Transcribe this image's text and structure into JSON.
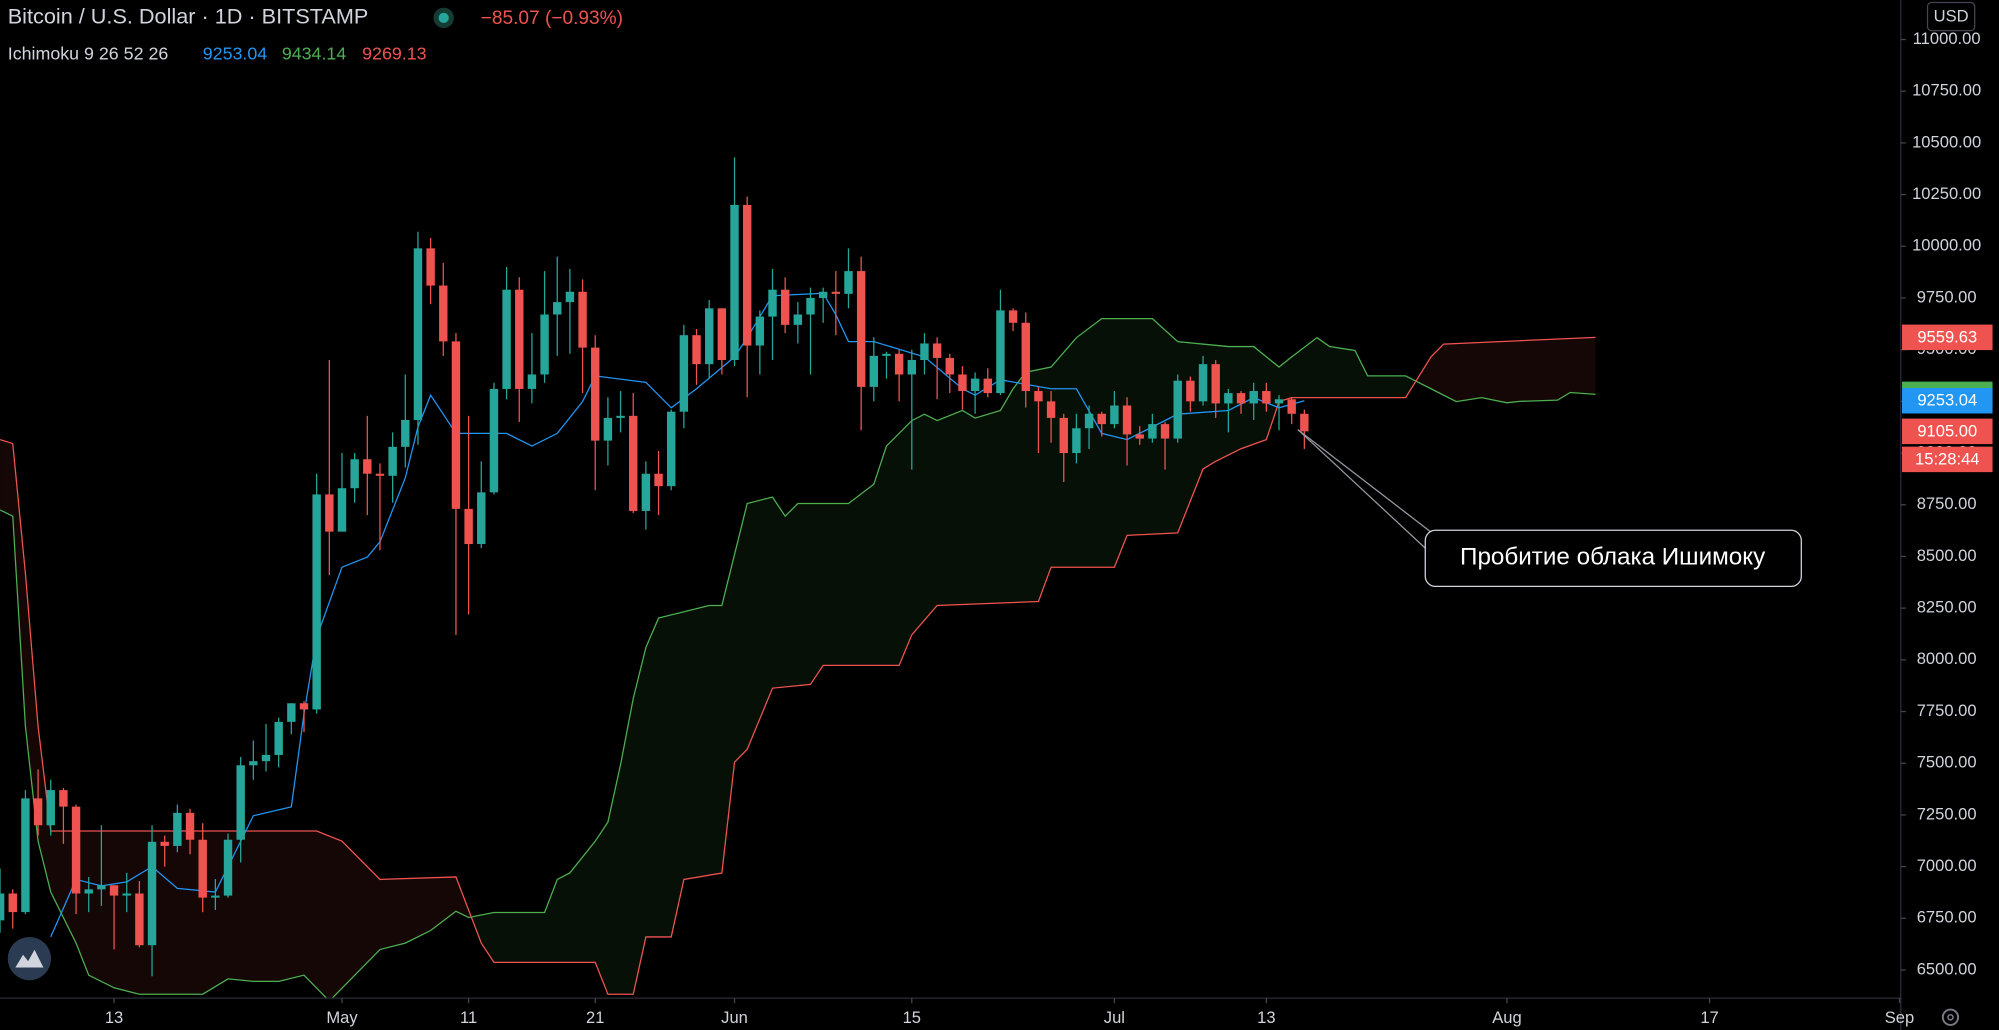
{
  "chart_data": {
    "type": "candlestick",
    "title": "Bitcoin / U.S. Dollar · 1D · BITSTAMP",
    "change": "−85.07 (−0.93%)",
    "indicator": "Ichimoku 9 26 52 26",
    "indicator_values": [
      9253.04,
      9434.14,
      9269.13
    ],
    "indicator_colors": [
      "#2196f3",
      "#4caf50",
      "#ef5350"
    ],
    "currency": "USD",
    "annotation": "Пробитие облака Ишимоку",
    "up_color": "#26a69a",
    "down_color": "#ef5350",
    "x": [
      "04-04",
      "04-05",
      "04-06",
      "04-07",
      "04-08",
      "04-09",
      "04-10",
      "04-11",
      "04-12",
      "04-13",
      "04-14",
      "04-15",
      "04-16",
      "04-17",
      "04-18",
      "04-19",
      "04-20",
      "04-21",
      "04-22",
      "04-23",
      "04-24",
      "04-25",
      "04-26",
      "04-27",
      "04-28",
      "04-29",
      "04-30",
      "05-01",
      "05-02",
      "05-03",
      "05-04",
      "05-05",
      "05-06",
      "05-07",
      "05-08",
      "05-09",
      "05-10",
      "05-11",
      "05-12",
      "05-13",
      "05-14",
      "05-15",
      "05-16",
      "05-17",
      "05-18",
      "05-19",
      "05-20",
      "05-21",
      "05-22",
      "05-23",
      "05-24",
      "05-25",
      "05-26",
      "05-27",
      "05-28",
      "05-29",
      "05-30",
      "05-31",
      "06-01",
      "06-02",
      "06-03",
      "06-04",
      "06-05",
      "06-06",
      "06-07",
      "06-08",
      "06-09",
      "06-10",
      "06-11",
      "06-12",
      "06-13",
      "06-14",
      "06-15",
      "06-16",
      "06-17",
      "06-18",
      "06-19",
      "06-20",
      "06-21",
      "06-22",
      "06-23",
      "06-24",
      "06-25",
      "06-26",
      "06-27",
      "06-28",
      "06-29",
      "06-30",
      "07-01",
      "07-02",
      "07-03",
      "07-04",
      "07-05",
      "07-06",
      "07-07",
      "07-08",
      "07-09",
      "07-10",
      "07-11",
      "07-12",
      "07-13",
      "07-14",
      "07-15",
      "07-16"
    ],
    "open": [
      6740,
      6870,
      6780,
      7330,
      7200,
      7370,
      7290,
      6870,
      6890,
      6910,
      6860,
      6870,
      6620,
      7120,
      7100,
      7260,
      7130,
      6850,
      6860,
      7130,
      7490,
      7510,
      7540,
      7700,
      7790,
      7760,
      8800,
      8620,
      8830,
      8970,
      8900,
      8890,
      9030,
      9160,
      9990,
      9810,
      9540,
      8730,
      8560,
      8810,
      9310,
      9790,
      9310,
      9380,
      9670,
      9730,
      9780,
      9510,
      9060,
      9170,
      9180,
      8720,
      8900,
      8840,
      9200,
      9570,
      9430,
      9700,
      9450,
      10200,
      9520,
      9660,
      9790,
      9620,
      9670,
      9750,
      9780,
      9770,
      9880,
      9320,
      9470,
      9480,
      9380,
      9450,
      9530,
      9460,
      9380,
      9300,
      9360,
      9290,
      9690,
      9630,
      9300,
      9250,
      9170,
      9000,
      9120,
      9190,
      9140,
      9230,
      9090,
      9070,
      9140,
      9070,
      9350,
      9250,
      9430,
      9240,
      9290,
      9240,
      9300,
      9240,
      9260,
      9190
    ],
    "high": [
      6990,
      6890,
      7370,
      7470,
      7420,
      7380,
      7300,
      6950,
      7200,
      6910,
      6970,
      6930,
      7200,
      7150,
      7300,
      7280,
      7210,
      6940,
      7160,
      7530,
      7610,
      7690,
      7720,
      7790,
      7800,
      8900,
      9450,
      9000,
      9000,
      9180,
      8950,
      9100,
      9380,
      10070,
      10040,
      9920,
      9580,
      9180,
      8960,
      9340,
      9900,
      9850,
      9580,
      9880,
      9950,
      9890,
      9840,
      9570,
      9270,
      9300,
      9290,
      8960,
      9010,
      9210,
      9620,
      9600,
      9740,
      9700,
      10430,
      10240,
      9690,
      9890,
      9850,
      9730,
      9800,
      9800,
      9880,
      9990,
      9950,
      9560,
      9490,
      9500,
      9500,
      9580,
      9560,
      9480,
      9420,
      9390,
      9410,
      9790,
      9700,
      9680,
      9320,
      9300,
      9190,
      9190,
      9230,
      9200,
      9300,
      9270,
      9130,
      9190,
      9150,
      9380,
      9370,
      9470,
      9450,
      9310,
      9300,
      9340,
      9340,
      9280,
      9270,
      9210
    ],
    "low": [
      6680,
      6700,
      6770,
      7150,
      7150,
      7110,
      6770,
      6780,
      6810,
      6600,
      6780,
      6610,
      6470,
      7000,
      7070,
      7060,
      6780,
      6790,
      6850,
      7020,
      7420,
      7460,
      7480,
      7640,
      7650,
      7740,
      8410,
      8620,
      8760,
      8700,
      8530,
      8760,
      8930,
      9040,
      9720,
      9470,
      8120,
      8220,
      8540,
      8800,
      9260,
      9150,
      9240,
      9340,
      9470,
      9480,
      9290,
      8820,
      8940,
      9100,
      8710,
      8630,
      8700,
      8820,
      9120,
      9330,
      9360,
      9380,
      9420,
      9270,
      9380,
      9450,
      9580,
      9530,
      9380,
      9630,
      9570,
      9700,
      9110,
      9250,
      9360,
      9250,
      8920,
      9380,
      9260,
      9290,
      9210,
      9190,
      9270,
      9280,
      9590,
      9220,
      9000,
      9050,
      8860,
      8950,
      9020,
      9080,
      9120,
      8940,
      9040,
      9050,
      8920,
      9050,
      9200,
      9230,
      9170,
      9100,
      9190,
      9160,
      9200,
      9110,
      9140,
      9020
    ],
    "close": [
      6870,
      6780,
      7330,
      7200,
      7370,
      7290,
      6870,
      6890,
      6910,
      6860,
      6870,
      6620,
      7120,
      7100,
      7260,
      7130,
      6850,
      6860,
      7130,
      7490,
      7510,
      7540,
      7700,
      7790,
      7760,
      8800,
      8620,
      8830,
      8970,
      8900,
      8890,
      9030,
      9160,
      9990,
      9810,
      9540,
      8730,
      8560,
      8810,
      9310,
      9790,
      9310,
      9380,
      9670,
      9730,
      9780,
      9510,
      9060,
      9170,
      9180,
      8720,
      8900,
      8840,
      9200,
      9570,
      9430,
      9700,
      9450,
      10200,
      9520,
      9660,
      9790,
      9620,
      9670,
      9750,
      9780,
      9770,
      9880,
      9320,
      9470,
      9480,
      9380,
      9450,
      9530,
      9460,
      9380,
      9300,
      9360,
      9290,
      9690,
      9630,
      9300,
      9250,
      9170,
      9000,
      9120,
      9190,
      9140,
      9230,
      9090,
      9070,
      9140,
      9070,
      9350,
      9250,
      9430,
      9240,
      9290,
      9240,
      9300,
      9240,
      9260,
      9190,
      9105
    ],
    "lines": [
      {
        "color": "#2196f3",
        "x": [
          "04-08",
          "04-10",
          "04-12",
          "04-14",
          "04-16",
          "04-18",
          "04-21",
          "04-22",
          "04-24",
          "04-27",
          "04-28",
          "04-29",
          "05-01",
          "05-03",
          "05-04",
          "05-06",
          "05-07",
          "05-08",
          "05-09",
          "05-10",
          "05-14",
          "05-16",
          "05-18",
          "05-20",
          "05-21",
          "05-25",
          "05-27",
          "05-29",
          "06-01",
          "06-02",
          "06-04",
          "06-08",
          "06-09",
          "06-10",
          "06-12",
          "06-16",
          "06-19",
          "06-20",
          "06-22",
          "06-26",
          "06-28",
          "06-30",
          "07-02",
          "07-06",
          "07-10",
          "07-12",
          "07-14",
          "07-16"
        ],
        "values": [
          6660,
          6938,
          6907,
          6926,
          7000,
          6895,
          6877,
          7000,
          7246,
          7289,
          7739,
          8109,
          8448,
          8497,
          8571,
          8880,
          9126,
          9280,
          9188,
          9095,
          9095,
          9034,
          9095,
          9249,
          9373,
          9342,
          9219,
          9311,
          9465,
          9558,
          9761,
          9773,
          9669,
          9539,
          9539,
          9465,
          9311,
          9280,
          9354,
          9311,
          9311,
          9095,
          9065,
          9188,
          9206,
          9268,
          9219,
          9253.04
        ]
      }
    ],
    "cloud": {
      "fill_colors": [
        "rgba(76,175,80,0.09)",
        "rgba(239,83,80,0.09)"
      ],
      "span_a": {
        "color": "#4caf50",
        "x": [
          "04-04",
          "04-05",
          "04-06",
          "04-07",
          "04-08",
          "04-10",
          "04-11",
          "04-13",
          "04-15",
          "04-20",
          "04-22",
          "04-24",
          "04-26",
          "04-28",
          "04-30",
          "05-04",
          "05-06",
          "05-08",
          "05-10",
          "05-11",
          "05-13",
          "05-17",
          "05-18",
          "05-19",
          "05-21",
          "05-22",
          "05-23",
          "05-24",
          "05-25",
          "05-26",
          "05-30",
          "05-31",
          "06-02",
          "06-04",
          "06-05",
          "06-06",
          "06-10",
          "06-12",
          "06-13",
          "06-15",
          "06-16",
          "06-17",
          "06-19",
          "06-20",
          "06-22",
          "06-23",
          "06-24",
          "06-26",
          "06-28",
          "06-30",
          "07-04",
          "07-06",
          "07-10",
          "07-12",
          "07-14",
          "07-15",
          "07-17",
          "07-18",
          "07-20",
          "07-21",
          "07-24",
          "07-26",
          "07-28",
          "07-30",
          "08-01",
          "08-02",
          "08-05",
          "08-06",
          "08-08"
        ],
        "values": [
          8725,
          8695,
          7678,
          7123,
          6877,
          6630,
          6475,
          6414,
          6383,
          6383,
          6457,
          6445,
          6445,
          6475,
          6350,
          6599,
          6630,
          6691,
          6784,
          6754,
          6778,
          6778,
          6938,
          6970,
          7123,
          7215,
          7493,
          7813,
          8060,
          8202,
          8263,
          8263,
          8756,
          8787,
          8695,
          8756,
          8756,
          8849,
          9034,
          9157,
          9188,
          9157,
          9206,
          9169,
          9206,
          9311,
          9391,
          9416,
          9558,
          9650,
          9650,
          9539,
          9515,
          9515,
          9416,
          9465,
          9558,
          9515,
          9496,
          9373,
          9373,
          9311,
          9249,
          9268,
          9243,
          9250,
          9256,
          9293,
          9283.87
        ]
      },
      "span_b": {
        "color": "#ef5350",
        "x": [
          "04-04",
          "04-05",
          "04-06",
          "04-07",
          "04-08",
          "04-29",
          "05-01",
          "05-04",
          "05-10",
          "05-12",
          "05-13",
          "05-21",
          "05-22",
          "05-24",
          "05-25",
          "05-27",
          "05-28",
          "05-31",
          "06-01",
          "06-02",
          "06-04",
          "06-07",
          "06-08",
          "06-14",
          "06-15",
          "06-17",
          "06-25",
          "06-26",
          "07-01",
          "07-02",
          "07-06",
          "07-08",
          "07-09",
          "07-11",
          "07-13",
          "07-14",
          "07-15",
          "07-24",
          "07-26",
          "07-27",
          "08-08"
        ],
        "values": [
          9065,
          9046,
          8417,
          7678,
          7172,
          7172,
          7123,
          6938,
          6950,
          6630,
          6537,
          6537,
          6383,
          6383,
          6660,
          6660,
          6938,
          6969,
          7505,
          7567,
          7863,
          7881,
          7973,
          7973,
          8121,
          8263,
          8282,
          8448,
          8448,
          8602,
          8614,
          8923,
          8960,
          9021,
          9065,
          9249,
          9268,
          9268,
          9465,
          9527,
          9559.63
        ]
      }
    },
    "xlim": [
      "04-04",
      "09-01"
    ],
    "xticks": [
      {
        "value": "04-13",
        "label": "13"
      },
      {
        "value": "05-01",
        "label": "May"
      },
      {
        "value": "05-11",
        "label": "11"
      },
      {
        "value": "05-21",
        "label": "21"
      },
      {
        "value": "06-01",
        "label": "Jun"
      },
      {
        "value": "06-15",
        "label": "15"
      },
      {
        "value": "07-01",
        "label": "Jul"
      },
      {
        "value": "07-13",
        "label": "13"
      },
      {
        "value": "08-01",
        "label": "Aug"
      },
      {
        "value": "08-17",
        "label": "17"
      },
      {
        "value": "09-01",
        "label": "Sep"
      }
    ],
    "ylim": [
      6364,
      11191
    ],
    "yticks": [
      {
        "value": 6500,
        "label": "6500.00"
      },
      {
        "value": 6750,
        "label": "6750.00"
      },
      {
        "value": 7000,
        "label": "7000.00"
      },
      {
        "value": 7250,
        "label": "7250.00"
      },
      {
        "value": 7500,
        "label": "7500.00"
      },
      {
        "value": 7750,
        "label": "7750.00"
      },
      {
        "value": 8000,
        "label": "8000.00"
      },
      {
        "value": 8250,
        "label": "8250.00"
      },
      {
        "value": 8500,
        "label": "8500.00"
      },
      {
        "value": 8750,
        "label": "8750.00"
      },
      {
        "value": 9000,
        "label": "9000.00"
      },
      {
        "value": 9250,
        "label": "9250.00"
      },
      {
        "value": 9500,
        "label": "9500.00"
      },
      {
        "value": 9750,
        "label": "9750.00"
      },
      {
        "value": 10000,
        "label": "10000.00"
      },
      {
        "value": 10250,
        "label": "10250.00"
      },
      {
        "value": 10500,
        "label": "10500.00"
      },
      {
        "value": 10750,
        "label": "10750.00"
      },
      {
        "value": 11000,
        "label": "11000.00"
      }
    ],
    "price_tags": [
      {
        "value": 9559.63,
        "color": "#ef5350"
      },
      {
        "value": 9283.87,
        "color": "#4caf50"
      },
      {
        "value": 9253.04,
        "color": "#2196f3"
      },
      {
        "value": 9105,
        "label": "9105.00",
        "color": "#ef5350",
        "countdown": "15:28:44"
      }
    ]
  }
}
